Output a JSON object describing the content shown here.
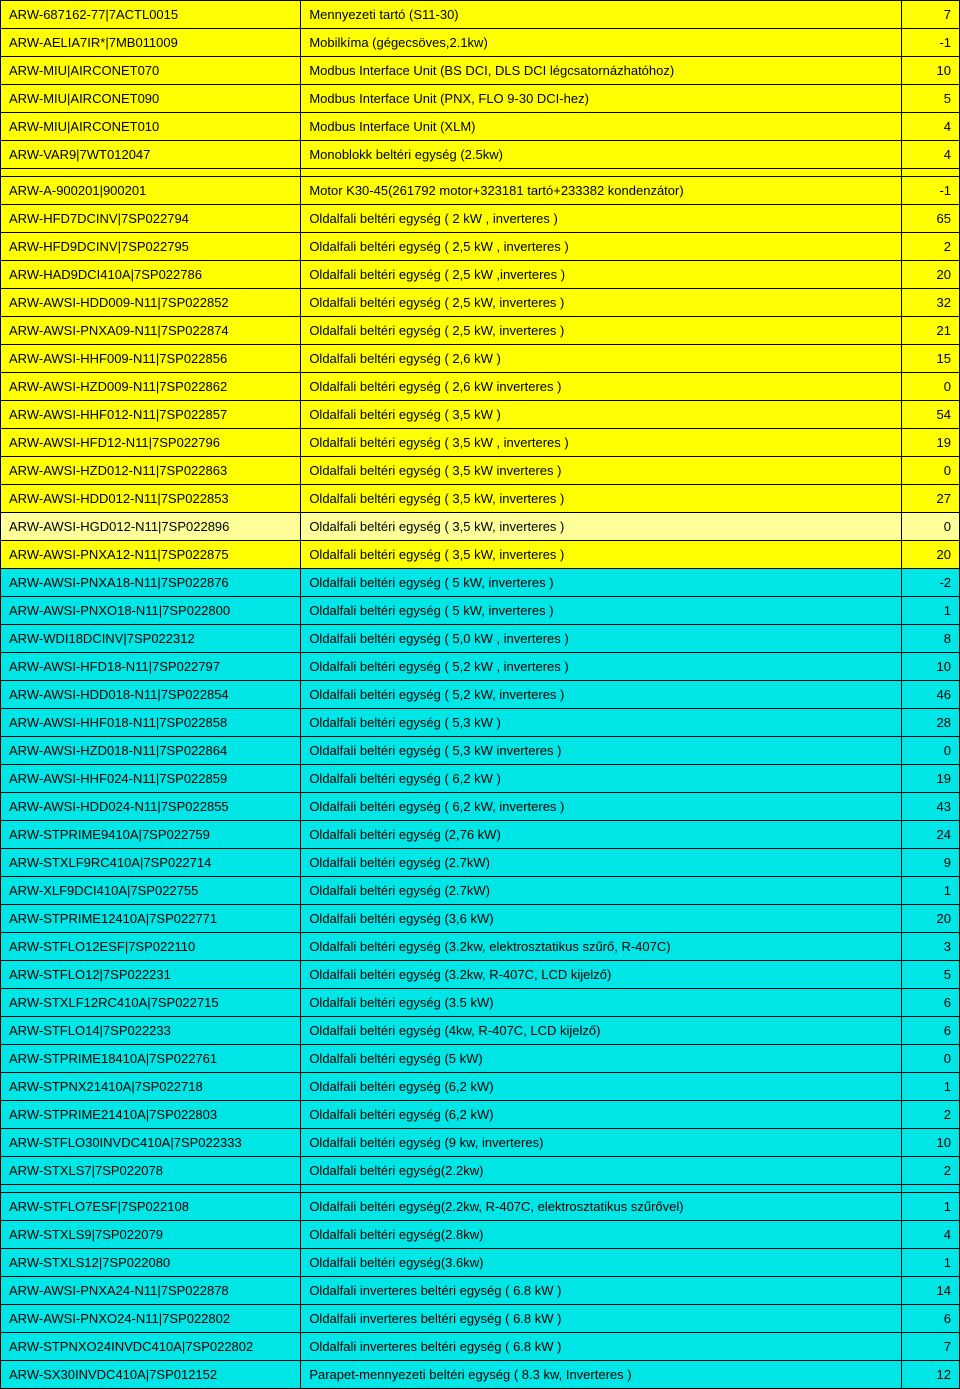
{
  "colors": {
    "yellow": "#ffff00",
    "lightyellow": "#ffff99",
    "cyan": "#00e6e6",
    "border": "#000000",
    "text": "#000000"
  },
  "columns": {
    "code_width": 300,
    "desc_width": 600,
    "qty_width": 58
  },
  "rows": [
    {
      "color": "yellow",
      "code": "ARW-687162-77|7ACTL0015",
      "desc": "Mennyezeti tartó (S11-30)",
      "qty": "7"
    },
    {
      "color": "yellow",
      "code": "ARW-AELIA7IR*|7MB011009",
      "desc": "Mobilkíma (gégecsöves,2.1kw)",
      "qty": "-1"
    },
    {
      "color": "yellow",
      "code": "ARW-MIU|AIRCONET070",
      "desc": "Modbus Interface Unit (BS DCI, DLS DCI légcsatornázhatóhoz)",
      "qty": "10"
    },
    {
      "color": "yellow",
      "code": "ARW-MIU|AIRCONET090",
      "desc": "Modbus Interface Unit (PNX, FLO 9-30 DCI-hez)",
      "qty": "5"
    },
    {
      "color": "yellow",
      "code": "ARW-MIU|AIRCONET010",
      "desc": "Modbus Interface Unit (XLM)",
      "qty": "4"
    },
    {
      "color": "yellow",
      "code": "ARW-VAR9|7WT012047",
      "desc": "Monoblokk beltéri egység (2.5kw)",
      "qty": "4"
    },
    {
      "spacer": true,
      "color": "yellow"
    },
    {
      "color": "yellow",
      "code": "ARW-A-900201|900201",
      "desc": "Motor K30-45(261792 motor+323181 tartó+233382 kondenzátor)",
      "qty": "-1"
    },
    {
      "color": "yellow",
      "code": "ARW-HFD7DCINV|7SP022794",
      "desc": "Oldalfali beltéri egység ( 2 kW , inverteres )",
      "qty": "65"
    },
    {
      "color": "yellow",
      "code": "ARW-HFD9DCINV|7SP022795",
      "desc": "Oldalfali beltéri egység ( 2,5 kW , inverteres )",
      "qty": "2"
    },
    {
      "color": "yellow",
      "code": "ARW-HAD9DCI410A|7SP022786",
      "desc": "Oldalfali beltéri egység ( 2,5 kW ,inverteres )",
      "qty": "20"
    },
    {
      "color": "yellow",
      "code": "ARW-AWSI-HDD009-N11|7SP022852",
      "desc": "Oldalfali beltéri egység ( 2,5 kW, inverteres )",
      "qty": "32"
    },
    {
      "color": "yellow",
      "code": "ARW-AWSI-PNXA09-N11|7SP022874",
      "desc": "Oldalfali beltéri egység ( 2,5 kW, inverteres )",
      "qty": "21"
    },
    {
      "color": "yellow",
      "code": "ARW-AWSI-HHF009-N11|7SP022856",
      "desc": "Oldalfali beltéri egység ( 2,6 kW )",
      "qty": "15"
    },
    {
      "color": "yellow",
      "code": "ARW-AWSI-HZD009-N11|7SP022862",
      "desc": "Oldalfali beltéri egység ( 2,6 kW inverteres )",
      "qty": "0"
    },
    {
      "color": "yellow",
      "code": "ARW-AWSI-HHF012-N11|7SP022857",
      "desc": "Oldalfali beltéri egység ( 3,5 kW )",
      "qty": "54"
    },
    {
      "color": "yellow",
      "code": "ARW-AWSI-HFD12-N11|7SP022796",
      "desc": "Oldalfali beltéri egység ( 3,5 kW , inverteres )",
      "qty": "19"
    },
    {
      "color": "yellow",
      "code": "ARW-AWSI-HZD012-N11|7SP022863",
      "desc": "Oldalfali beltéri egység ( 3,5 kW inverteres )",
      "qty": "0"
    },
    {
      "color": "yellow",
      "code": "ARW-AWSI-HDD012-N11|7SP022853",
      "desc": "Oldalfali beltéri egység ( 3,5 kW, inverteres )",
      "qty": "27"
    },
    {
      "color": "lightyellow",
      "code": "ARW-AWSI-HGD012-N11|7SP022896",
      "desc": "Oldalfali beltéri egység ( 3,5 kW, inverteres )",
      "qty": "0"
    },
    {
      "color": "yellow",
      "code": "ARW-AWSI-PNXA12-N11|7SP022875",
      "desc": "Oldalfali beltéri egység ( 3,5 kW, inverteres )",
      "qty": "20"
    },
    {
      "color": "cyan",
      "code": "ARW-AWSI-PNXA18-N11|7SP022876",
      "desc": "Oldalfali beltéri egység ( 5 kW, inverteres )",
      "qty": "-2"
    },
    {
      "color": "cyan",
      "code": "ARW-AWSI-PNXO18-N11|7SP022800",
      "desc": "Oldalfali beltéri egység ( 5 kW, inverteres )",
      "qty": "1"
    },
    {
      "color": "cyan",
      "code": "ARW-WDI18DCINV|7SP022312",
      "desc": "Oldalfali beltéri egység ( 5,0 kW , inverteres )",
      "qty": "8"
    },
    {
      "color": "cyan",
      "code": "ARW-AWSI-HFD18-N11|7SP022797",
      "desc": "Oldalfali beltéri egység ( 5,2 kW , inverteres )",
      "qty": "10"
    },
    {
      "color": "cyan",
      "code": "ARW-AWSI-HDD018-N11|7SP022854",
      "desc": "Oldalfali beltéri egység ( 5,2 kW, inverteres )",
      "qty": "46"
    },
    {
      "color": "cyan",
      "code": "ARW-AWSI-HHF018-N11|7SP022858",
      "desc": "Oldalfali beltéri egység ( 5,3 kW )",
      "qty": "28"
    },
    {
      "color": "cyan",
      "code": "ARW-AWSI-HZD018-N11|7SP022864",
      "desc": "Oldalfali beltéri egység ( 5,3 kW inverteres )",
      "qty": "0"
    },
    {
      "color": "cyan",
      "code": "ARW-AWSI-HHF024-N11|7SP022859",
      "desc": "Oldalfali beltéri egység ( 6,2 kW )",
      "qty": "19"
    },
    {
      "color": "cyan",
      "code": "ARW-AWSI-HDD024-N11|7SP022855",
      "desc": "Oldalfali beltéri egység ( 6,2 kW, inverteres )",
      "qty": "43"
    },
    {
      "color": "cyan",
      "code": "ARW-STPRIME9410A|7SP022759",
      "desc": "Oldalfali beltéri egység (2,76 kW)",
      "qty": "24"
    },
    {
      "color": "cyan",
      "code": "ARW-STXLF9RC410A|7SP022714",
      "desc": "Oldalfali beltéri egység (2.7kW)",
      "qty": "9"
    },
    {
      "color": "cyan",
      "code": "ARW-XLF9DCI410A|7SP022755",
      "desc": "Oldalfali beltéri egység (2.7kW)",
      "qty": "1"
    },
    {
      "color": "cyan",
      "code": "ARW-STPRIME12410A|7SP022771",
      "desc": "Oldalfali beltéri egység (3,6 kW)",
      "qty": "20"
    },
    {
      "color": "cyan",
      "code": "ARW-STFLO12ESF|7SP022110",
      "desc": "Oldalfali beltéri egység (3.2kw, elektrosztatikus szűrő, R-407C)",
      "qty": "3"
    },
    {
      "color": "cyan",
      "code": "ARW-STFLO12|7SP022231",
      "desc": "Oldalfali beltéri egység (3.2kw, R-407C, LCD kijelző)",
      "qty": "5"
    },
    {
      "color": "cyan",
      "code": "ARW-STXLF12RC410A|7SP022715",
      "desc": "Oldalfali beltéri egység (3.5 kW)",
      "qty": "6"
    },
    {
      "color": "cyan",
      "code": "ARW-STFLO14|7SP022233",
      "desc": "Oldalfali beltéri egység (4kw, R-407C, LCD kijelző)",
      "qty": "6"
    },
    {
      "color": "cyan",
      "code": "ARW-STPRIME18410A|7SP022761",
      "desc": "Oldalfali beltéri egység (5 kW)",
      "qty": "0"
    },
    {
      "color": "cyan",
      "code": "ARW-STPNX21410A|7SP022718",
      "desc": "Oldalfali beltéri egység (6,2 kW)",
      "qty": "1"
    },
    {
      "color": "cyan",
      "code": "ARW-STPRIME21410A|7SP022803",
      "desc": "Oldalfali beltéri egység (6,2 kW)",
      "qty": "2"
    },
    {
      "color": "cyan",
      "code": "ARW-STFLO30INVDC410A|7SP022333",
      "desc": "Oldalfali beltéri egység (9 kw, inverteres)",
      "qty": "10"
    },
    {
      "color": "cyan",
      "code": "ARW-STXLS7|7SP022078",
      "desc": "Oldalfali beltéri egység(2.2kw)",
      "qty": "2"
    },
    {
      "spacer": true,
      "color": "cyan"
    },
    {
      "color": "cyan",
      "code": "ARW-STFLO7ESF|7SP022108",
      "desc": "Oldalfali beltéri egység(2.2kw, R-407C, elektrosztatikus szűrővel)",
      "qty": "1"
    },
    {
      "color": "cyan",
      "code": "ARW-STXLS9|7SP022079",
      "desc": "Oldalfali beltéri egység(2.8kw)",
      "qty": "4"
    },
    {
      "color": "cyan",
      "code": "ARW-STXLS12|7SP022080",
      "desc": "Oldalfali beltéri egység(3.6kw)",
      "qty": "1"
    },
    {
      "color": "cyan",
      "code": "ARW-AWSI-PNXA24-N11|7SP022878",
      "desc": "Oldalfali inverteres beltéri egység ( 6.8 kW )",
      "qty": "14"
    },
    {
      "color": "cyan",
      "code": "ARW-AWSI-PNXO24-N11|7SP022802",
      "desc": "Oldalfali inverteres beltéri egység ( 6.8 kW )",
      "qty": "6"
    },
    {
      "color": "cyan",
      "code": "ARW-STPNXO24INVDC410A|7SP022802",
      "desc": "Oldalfali inverteres beltéri egység ( 6.8 kW )",
      "qty": "7"
    },
    {
      "color": "cyan",
      "code": "ARW-SX30INVDC410A|7SP012152",
      "desc": "Parapet-mennyezeti beltéri egység ( 8.3 kw, Inverteres )",
      "qty": "12"
    }
  ]
}
